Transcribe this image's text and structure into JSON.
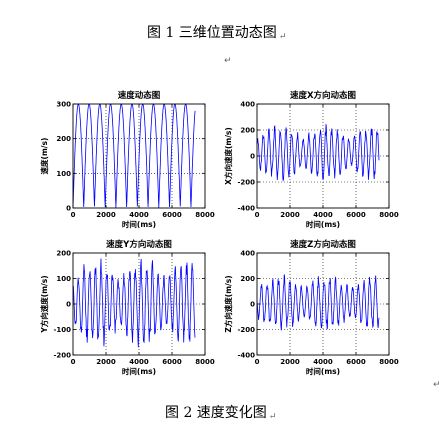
{
  "figure1_caption": "图 1  三维位置动态图",
  "figure2_caption": "图 2  速度变化图",
  "return_mark": "↵",
  "colors": {
    "line": "#0000ff",
    "axes": "#000000",
    "grid": "#000000"
  },
  "chart_data": [
    {
      "type": "line",
      "title": "速度动态图",
      "xlabel": "时间(ms)",
      "ylabel": "速度(m/s)",
      "xlim": [
        0,
        8000
      ],
      "ylim": [
        0,
        300
      ],
      "xticks": [
        "0",
        "2000",
        "4000",
        "6000",
        "8000"
      ],
      "yticks": [
        "0",
        "100",
        "200",
        "300"
      ],
      "grid": true,
      "series": [
        {
          "values_description": "oscillation",
          "period_ms": 650,
          "min": 0,
          "max": 300,
          "x_end": 7400
        }
      ]
    },
    {
      "type": "line",
      "title": "速度X方向动态图",
      "xlabel": "时间(ms)",
      "ylabel": "X方向速度(m/s)",
      "xlim": [
        0,
        8000
      ],
      "ylim": [
        -400,
        400
      ],
      "xticks": [
        "0",
        "2000",
        "4000",
        "6000",
        "8000"
      ],
      "yticks": [
        "-400",
        "-200",
        "0",
        "200",
        "400"
      ],
      "grid": true,
      "series": [
        {
          "values_description": "oscillation",
          "min": -200,
          "max": 250,
          "x_end": 7400
        }
      ]
    },
    {
      "type": "line",
      "title": "速度Y方向动态图",
      "xlabel": "时间(ms)",
      "ylabel": "Y方向速度(m/s)",
      "xlim": [
        0,
        8000
      ],
      "ylim": [
        -200,
        200
      ],
      "xticks": [
        "0",
        "2000",
        "4000",
        "6000",
        "8000"
      ],
      "yticks": [
        "-200",
        "-100",
        "0",
        "100",
        "200"
      ],
      "grid": true,
      "series": [
        {
          "values_description": "oscillation",
          "min": -180,
          "max": 190,
          "x_end": 7400
        }
      ]
    },
    {
      "type": "line",
      "title": "速度Z方向动态图",
      "xlabel": "时间(ms)",
      "ylabel": "Z方向速度(m/s)",
      "xlim": [
        0,
        8000
      ],
      "ylim": [
        -400,
        400
      ],
      "xticks": [
        "0",
        "2000",
        "4000",
        "6000",
        "8000"
      ],
      "yticks": [
        "-400",
        "-200",
        "0",
        "200",
        "400"
      ],
      "grid": true,
      "series": [
        {
          "values_description": "oscillation",
          "min": -220,
          "max": 240,
          "x_end": 7400
        }
      ]
    }
  ]
}
